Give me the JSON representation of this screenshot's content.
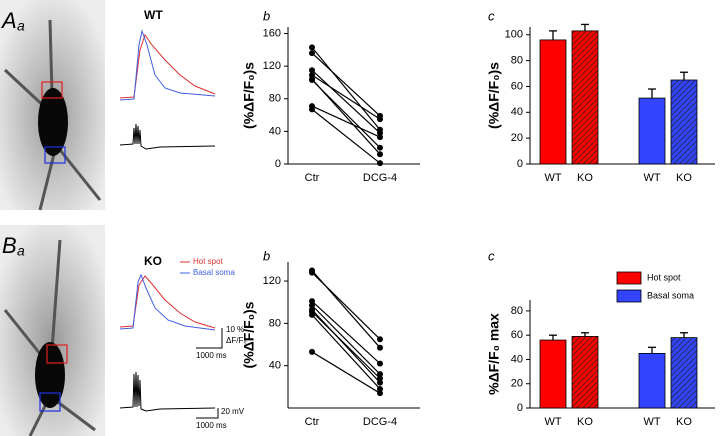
{
  "panels": {
    "a_letter": "A",
    "a_sub": "a",
    "b_letter": "B",
    "b_sub": "a",
    "wt": "WT",
    "ko": "KO",
    "trace_hot": "Hot spot",
    "trace_basal": "Basal soma",
    "scale_pct": "10 %",
    "scale_dff": "ΔF/F₀",
    "scale_ms_top": "1000 ms",
    "scale_mv": "20 mV",
    "scale_ms_bottom": "1000 ms",
    "top_b": "b",
    "top_c": "c",
    "bottom_b": "b",
    "bottom_c": "c"
  },
  "chart_data": [
    {
      "type": "line",
      "ylabel": "(%ΔF/F₀)s",
      "categories": [
        "Ctr",
        "DCG-4"
      ],
      "ylim": [
        0,
        168
      ],
      "yticks": [
        0,
        40,
        80,
        120,
        160
      ],
      "series": [
        {
          "color": "#000000",
          "values": [
            143,
            42
          ]
        },
        {
          "color": "#000000",
          "values": [
            136,
            59
          ]
        },
        {
          "color": "#000000",
          "values": [
            115,
            38
          ]
        },
        {
          "color": "#000000",
          "values": [
            109,
            55
          ]
        },
        {
          "color": "#000000",
          "values": [
            103,
            20
          ]
        },
        {
          "color": "#000000",
          "values": [
            104,
            12
          ]
        },
        {
          "color": "#000000",
          "values": [
            71,
            33
          ]
        },
        {
          "color": "#000000",
          "values": [
            67,
            1
          ]
        }
      ]
    },
    {
      "type": "bar",
      "ylabel": "(%ΔF/F₀)s",
      "categories": [
        "WT",
        "KO",
        "WT",
        "KO"
      ],
      "values": [
        96,
        103,
        51,
        65
      ],
      "errors": [
        7,
        5,
        7,
        6
      ],
      "colors": [
        "#ff0000",
        "#ff0000",
        "#3344ff",
        "#3344ff"
      ],
      "hatch": [
        false,
        true,
        false,
        true
      ],
      "ylim": [
        0,
        106
      ],
      "yticks": [
        0,
        20,
        40,
        60,
        80,
        100
      ]
    },
    {
      "type": "line",
      "ylabel": "(%ΔF/F₀)s",
      "categories": [
        "Ctr",
        "DCG-4"
      ],
      "ylim": [
        0,
        138
      ],
      "yticks": [
        40,
        80,
        120
      ],
      "series": [
        {
          "color": "#000000",
          "values": [
            130,
            57
          ]
        },
        {
          "color": "#000000",
          "values": [
            128,
            65
          ]
        },
        {
          "color": "#000000",
          "values": [
            101,
            42
          ]
        },
        {
          "color": "#000000",
          "values": [
            97,
            32
          ]
        },
        {
          "color": "#000000",
          "values": [
            93,
            24
          ]
        },
        {
          "color": "#000000",
          "values": [
            91,
            28
          ]
        },
        {
          "color": "#000000",
          "values": [
            88,
            18
          ]
        },
        {
          "color": "#000000",
          "values": [
            53,
            14
          ]
        }
      ]
    },
    {
      "type": "bar",
      "ylabel": "%ΔF/F₀ max",
      "categories": [
        "WT",
        "KO",
        "WT",
        "KO"
      ],
      "values": [
        56,
        59,
        45,
        58
      ],
      "errors": [
        4,
        3,
        5,
        4
      ],
      "colors": [
        "#ff0000",
        "#ff0000",
        "#3344ff",
        "#3344ff"
      ],
      "hatch": [
        false,
        true,
        false,
        true
      ],
      "ylim": [
        0,
        89
      ],
      "yticks": [
        0,
        20,
        40,
        60,
        80
      ],
      "legend": [
        {
          "name": "Hot spot",
          "color": "#ff0000"
        },
        {
          "name": "Basal soma",
          "color": "#3344ff"
        }
      ]
    }
  ]
}
